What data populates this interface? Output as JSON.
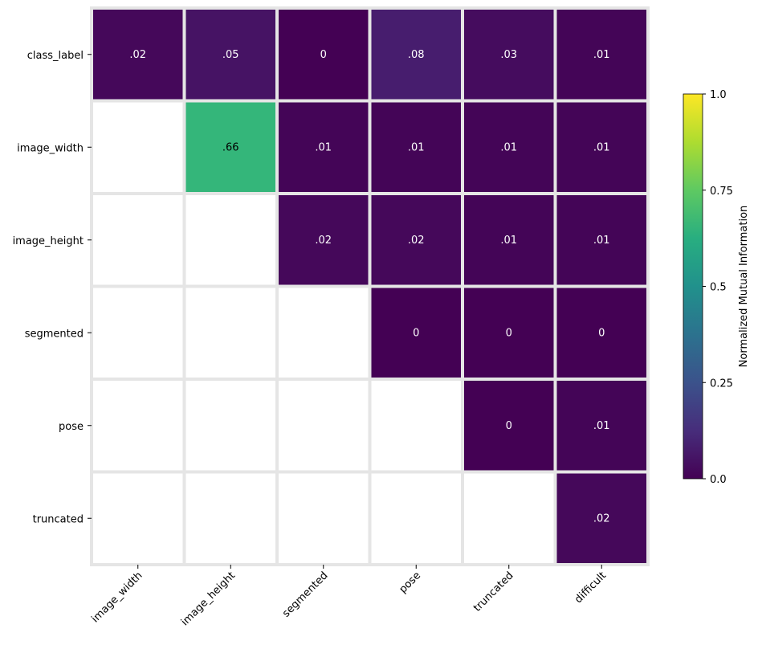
{
  "chart_data": {
    "type": "heatmap",
    "title": "",
    "xlabel": "",
    "ylabel": "",
    "rows": [
      "class_label",
      "image_width",
      "image_height",
      "segmented",
      "pose",
      "truncated"
    ],
    "columns": [
      "image_width",
      "image_height",
      "segmented",
      "pose",
      "truncated",
      "difficult"
    ],
    "values": [
      [
        0.02,
        0.05,
        0,
        0.08,
        0.03,
        0.01
      ],
      [
        null,
        0.66,
        0.01,
        0.01,
        0.01,
        0.01
      ],
      [
        null,
        null,
        0.02,
        0.02,
        0.01,
        0.01
      ],
      [
        null,
        null,
        null,
        0,
        0,
        0
      ],
      [
        null,
        null,
        null,
        null,
        0,
        0.01
      ],
      [
        null,
        null,
        null,
        null,
        null,
        0.02
      ]
    ],
    "cell_labels": [
      [
        ".02",
        ".05",
        "0",
        ".08",
        ".03",
        ".01"
      ],
      [
        null,
        ".66",
        ".01",
        ".01",
        ".01",
        ".01"
      ],
      [
        null,
        null,
        ".02",
        ".02",
        ".01",
        ".01"
      ],
      [
        null,
        null,
        null,
        "0",
        "0",
        "0"
      ],
      [
        null,
        null,
        null,
        null,
        "0",
        ".01"
      ],
      [
        null,
        null,
        null,
        null,
        null,
        ".02"
      ]
    ],
    "colormap": "viridis",
    "vmin": 0,
    "vmax": 1,
    "colorbar": {
      "label": "Normalized Mutual Information",
      "ticks": [
        0,
        0.25,
        0.5,
        0.75,
        1
      ],
      "tick_labels": [
        "0.0",
        "0.25",
        "0.5",
        "0.75",
        "1.0"
      ]
    },
    "grid_color": "#e5e5e5",
    "empty_cell_color": "#ffffff",
    "label_color_dark_cells": "#ffffff",
    "label_color_light_cells": "#000000"
  }
}
